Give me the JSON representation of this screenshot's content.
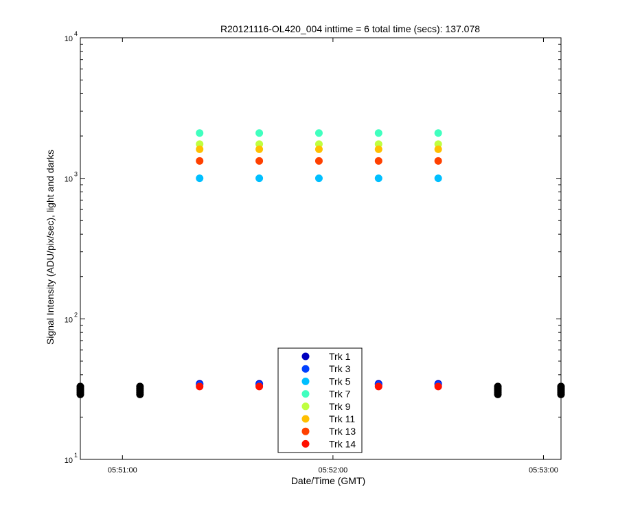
{
  "chart_data": {
    "type": "scatter",
    "title": "R20121116-OL420_004 inttime = 6 total time (secs): 137.078",
    "xlabel": "Date/Time (GMT)",
    "ylabel": "Signal Intensity (ADU/pix/sec), light and darks",
    "y_scale": "log",
    "ylim": [
      10,
      10000
    ],
    "xlim": [
      "05:50:48",
      "05:53:05"
    ],
    "x_ticks": [
      "05:51:00",
      "05:52:00",
      "05:53:00"
    ],
    "y_ticks": [
      {
        "value": 10,
        "base": "10",
        "exp": "1"
      },
      {
        "value": 100,
        "base": "10",
        "exp": "2"
      },
      {
        "value": 1000,
        "base": "10",
        "exp": "3"
      },
      {
        "value": 10000,
        "base": "10",
        "exp": "4"
      }
    ],
    "grid": false,
    "legend_position": "bottom-center",
    "light_times": [
      "05:51:22",
      "05:51:39",
      "05:51:56",
      "05:52:13",
      "05:52:30"
    ],
    "dark_times": [
      "05:50:48",
      "05:51:05",
      "05:52:47",
      "05:53:05"
    ],
    "dark_values": [
      29,
      30,
      31,
      32,
      33
    ],
    "dark_color": "#000000",
    "series": [
      {
        "name": "Trk 1",
        "color": "#0000bf",
        "values": [
          34.5,
          34.5,
          34.5,
          34.5,
          34.5
        ]
      },
      {
        "name": "Trk 3",
        "color": "#0040ff",
        "values": [
          34,
          34,
          34,
          34,
          34
        ]
      },
      {
        "name": "Trk 5",
        "color": "#00bfff",
        "values": [
          1000,
          1000,
          1000,
          1000,
          1000
        ]
      },
      {
        "name": "Trk 7",
        "color": "#40ffbf",
        "values": [
          2100,
          2100,
          2100,
          2100,
          2100
        ]
      },
      {
        "name": "Trk 9",
        "color": "#bfff40",
        "values": [
          1750,
          1750,
          1750,
          1750,
          1750
        ]
      },
      {
        "name": "Trk 11",
        "color": "#ffbf00",
        "values": [
          1610,
          1610,
          1610,
          1610,
          1610
        ]
      },
      {
        "name": "Trk 13",
        "color": "#ff4000",
        "values": [
          1330,
          1330,
          1330,
          1330,
          1330
        ]
      },
      {
        "name": "Trk 14",
        "color": "#ff1000",
        "values": [
          33,
          33,
          33,
          33,
          33
        ]
      }
    ]
  }
}
